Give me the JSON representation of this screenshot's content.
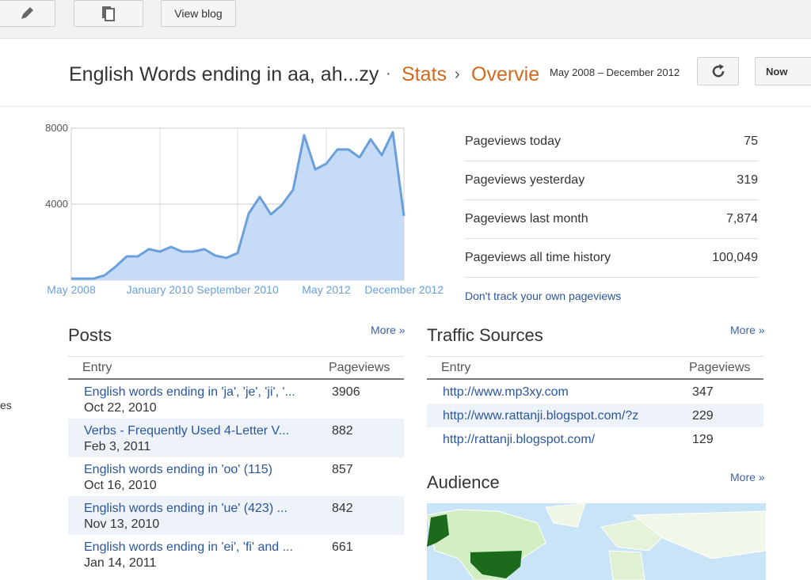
{
  "toolbar": {
    "view_blog": "View blog"
  },
  "header": {
    "blog_title": "English Words ending in aa, ah...zy",
    "crumbs": [
      "Stats",
      "Overvie"
    ],
    "range": "May 2008 – December 2012",
    "now": "Now"
  },
  "chart_data": {
    "type": "area",
    "color": "#6a9fd9",
    "fill": "#c6dbf5",
    "grid": true,
    "x": [
      "May 2008",
      null,
      null,
      null,
      null,
      null,
      null,
      null,
      "January 2010",
      null,
      null,
      null,
      null,
      null,
      null,
      "September 2010",
      null,
      null,
      null,
      null,
      null,
      null,
      null,
      "May 2012",
      null,
      null,
      null,
      null,
      null,
      null,
      "December 2012"
    ],
    "values": [
      80,
      80,
      80,
      250,
      710,
      1250,
      1250,
      1630,
      1500,
      1750,
      1500,
      1500,
      1630,
      1290,
      1170,
      1420,
      3500,
      4380,
      3460,
      3960,
      4750,
      7630,
      5830,
      6130,
      6880,
      6880,
      6460,
      7420,
      6580,
      7790,
      3380
    ],
    "ylim": [
      0,
      8000
    ],
    "yticks": [
      4000,
      8000
    ]
  },
  "stats": [
    [
      "Pageviews today",
      "75"
    ],
    [
      "Pageviews yesterday",
      "319"
    ],
    [
      "Pageviews last month",
      "7,874"
    ],
    [
      "Pageviews all time history",
      "100,049"
    ]
  ],
  "dont_track": "Don't track your own pageviews",
  "side_cut": "es",
  "posts": {
    "title": "Posts",
    "more": "More »",
    "headers": [
      "Entry",
      "Pageviews"
    ],
    "rows": [
      [
        "English words ending in 'ja', 'je', 'ji', '...",
        "Oct 22, 2010",
        "3906"
      ],
      [
        "Verbs - Frequently Used 4-Letter V...",
        "Feb 3, 2011",
        "882"
      ],
      [
        "English words ending in 'oo' (115)",
        "Oct 16, 2010",
        "857"
      ],
      [
        "English words ending in 'ue' (423) ...",
        "Nov 13, 2010",
        "842"
      ],
      [
        "English words ending in 'ei', 'fi' and ...",
        "Jan 14, 2011",
        "661"
      ]
    ]
  },
  "traffic": {
    "title": "Traffic Sources",
    "more": "More »",
    "headers": [
      "Entry",
      "Pageviews"
    ],
    "rows": [
      [
        "http://www.mp3xy.com",
        "347"
      ],
      [
        "http://www.rattanji.blogspot.com/?z",
        "229"
      ],
      [
        "http://rattanji.blogspot.com/",
        "129"
      ]
    ]
  },
  "audience": {
    "title": "Audience",
    "more": "More »"
  }
}
